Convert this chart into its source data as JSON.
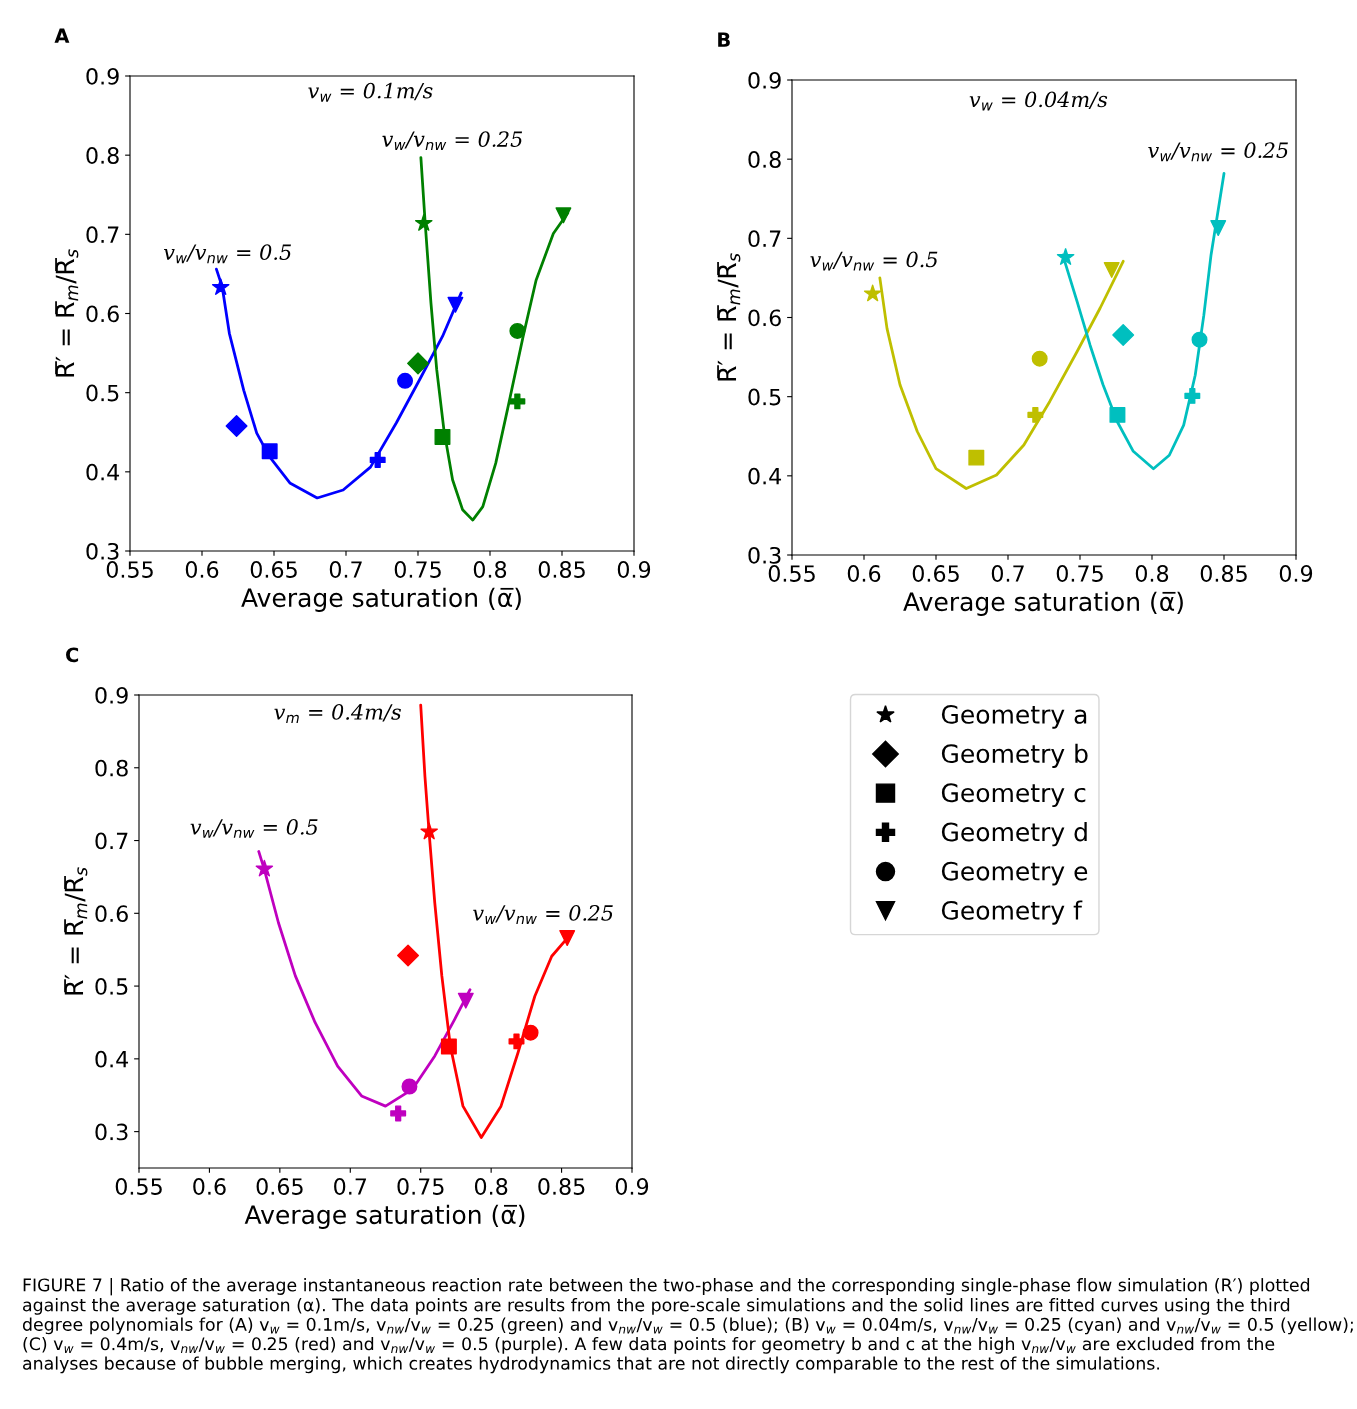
{
  "chart_data": [
    {
      "type": "scatter",
      "title": "A",
      "xlabel": "Average saturation (α̅)",
      "ylabel": "R̅′ = R̅$_{m}$/R̅$_{s}$",
      "xlim": [
        0.55,
        0.9
      ],
      "ylim": [
        0.3,
        0.9
      ],
      "xticks": [
        0.55,
        0.6,
        0.65,
        0.7,
        0.75,
        0.8,
        0.85,
        0.9
      ],
      "yticks": [
        0.3,
        0.4,
        0.5,
        0.6,
        0.7,
        0.8,
        0.9
      ],
      "grid": false,
      "annotations": [
        "v$_{w}$ = 0.1m/s",
        "v$_{w}$/v$_{nw}$ = 0.25",
        "v$_{w}$/v$_{nw}$ = 0.5"
      ],
      "series": [
        {
          "type": "line",
          "color": "#0000ff",
          "marker": "none",
          "x": [
            0.61,
            0.614,
            0.619,
            0.629,
            0.638,
            0.647,
            0.661,
            0.68,
            0.698,
            0.717,
            0.735,
            0.751,
            0.767,
            0.78
          ],
          "values": [
            0.656,
            0.634,
            0.575,
            0.503,
            0.449,
            0.419,
            0.386,
            0.367,
            0.377,
            0.406,
            0.462,
            0.516,
            0.571,
            0.626
          ]
        },
        {
          "type": "line",
          "color": "#008000",
          "marker": "none",
          "x": [
            0.752,
            0.755,
            0.759,
            0.763,
            0.768,
            0.774,
            0.781,
            0.788,
            0.795,
            0.804,
            0.813,
            0.823,
            0.832,
            0.844,
            0.854
          ],
          "values": [
            0.797,
            0.714,
            0.613,
            0.529,
            0.453,
            0.39,
            0.352,
            0.339,
            0.356,
            0.411,
            0.486,
            0.571,
            0.642,
            0.701,
            0.727
          ]
        },
        {
          "marker": "star",
          "x": [
            0.613,
            0.754
          ],
          "values": [
            0.633,
            0.714
          ],
          "colors": [
            "#0000ff",
            "#008000"
          ]
        },
        {
          "marker": "diamond",
          "x": [
            0.624,
            0.75
          ],
          "values": [
            0.458,
            0.537
          ],
          "colors": [
            "#0000ff",
            "#008000"
          ]
        },
        {
          "marker": "square",
          "x": [
            0.647,
            0.767
          ],
          "values": [
            0.426,
            0.444
          ],
          "colors": [
            "#0000ff",
            "#008000"
          ]
        },
        {
          "marker": "cross",
          "x": [
            0.722,
            0.819
          ],
          "values": [
            0.415,
            0.489
          ],
          "colors": [
            "#0000ff",
            "#008000"
          ]
        },
        {
          "marker": "circle",
          "x": [
            0.741,
            0.819
          ],
          "values": [
            0.515,
            0.578
          ],
          "colors": [
            "#0000ff",
            "#008000"
          ]
        },
        {
          "marker": "triangle",
          "x": [
            0.776,
            0.851
          ],
          "values": [
            0.611,
            0.724
          ],
          "colors": [
            "#0000ff",
            "#008000"
          ]
        }
      ]
    },
    {
      "type": "scatter",
      "title": "B",
      "xlabel": "Average saturation (α̅)",
      "ylabel": "R̅′ = R̅$_{m}$/R̅$_{s}$",
      "xlim": [
        0.55,
        0.9
      ],
      "ylim": [
        0.3,
        0.9
      ],
      "xticks": [
        0.55,
        0.6,
        0.65,
        0.7,
        0.75,
        0.8,
        0.85,
        0.9
      ],
      "yticks": [
        0.3,
        0.4,
        0.5,
        0.6,
        0.7,
        0.8,
        0.9
      ],
      "grid": false,
      "annotations": [
        "v$_{w}$ = 0.04m/s",
        "v$_{w}$/v$_{nw}$ = 0.25",
        "v$_{w}$/v$_{nw}$ = 0.5"
      ],
      "series": [
        {
          "type": "line",
          "color": "#bfbf00",
          "marker": "none",
          "x": [
            0.611,
            0.616,
            0.625,
            0.637,
            0.65,
            0.671,
            0.692,
            0.711,
            0.729,
            0.748,
            0.764,
            0.78
          ],
          "values": [
            0.65,
            0.586,
            0.515,
            0.456,
            0.409,
            0.384,
            0.401,
            0.439,
            0.494,
            0.557,
            0.612,
            0.671
          ]
        },
        {
          "type": "line",
          "color": "#00bfbf",
          "marker": "none",
          "x": [
            0.738,
            0.748,
            0.757,
            0.766,
            0.776,
            0.787,
            0.801,
            0.812,
            0.822,
            0.83,
            0.836,
            0.841,
            0.85
          ],
          "values": [
            0.679,
            0.62,
            0.565,
            0.515,
            0.468,
            0.431,
            0.409,
            0.426,
            0.464,
            0.527,
            0.603,
            0.679,
            0.782
          ]
        },
        {
          "marker": "star",
          "x": [
            0.606,
            0.74
          ],
          "values": [
            0.63,
            0.676
          ],
          "colors": [
            "#bfbf00",
            "#00bfbf"
          ]
        },
        {
          "marker": "diamond",
          "x": [
            0.78
          ],
          "values": [
            0.578
          ],
          "colors": [
            "#00bfbf"
          ]
        },
        {
          "marker": "square",
          "x": [
            0.678,
            0.776
          ],
          "values": [
            0.423,
            0.477
          ],
          "colors": [
            "#bfbf00",
            "#00bfbf"
          ]
        },
        {
          "marker": "cross",
          "x": [
            0.719,
            0.828
          ],
          "values": [
            0.477,
            0.501
          ],
          "colors": [
            "#bfbf00",
            "#00bfbf"
          ]
        },
        {
          "marker": "circle",
          "x": [
            0.722,
            0.833
          ],
          "values": [
            0.548,
            0.572
          ],
          "colors": [
            "#bfbf00",
            "#00bfbf"
          ]
        },
        {
          "marker": "triangle",
          "x": [
            0.772,
            0.846
          ],
          "values": [
            0.66,
            0.713
          ],
          "colors": [
            "#bfbf00",
            "#00bfbf"
          ]
        }
      ]
    },
    {
      "type": "scatter",
      "title": "C",
      "xlabel": "Average saturation (α̅)",
      "ylabel": "R̅′ = R̅$_{m}$/R̅$_{s}$",
      "xlim": [
        0.55,
        0.9
      ],
      "ylim": [
        0.25,
        0.9
      ],
      "xticks": [
        0.55,
        0.6,
        0.65,
        0.7,
        0.75,
        0.8,
        0.85,
        0.9
      ],
      "yticks": [
        0.3,
        0.4,
        0.5,
        0.6,
        0.7,
        0.8,
        0.9
      ],
      "grid": false,
      "annotations": [
        "v$_{m}$ = 0.4m/s",
        "v$_{w}$/v$_{nw}$ = 0.5",
        "v$_{w}$/v$_{nw}$ = 0.25",
        "FIGURE 7 | Ratio of the average instantaneous reaction rate between the two-phase and the corresponding single-phase flow simulation (R′) plotted against the average saturation (α). The data points are results from the pore-scale simulations and the solid lines are fitted curves using the third degree polynomials for (A) v$_{w}$ = 0.1m/s, v$_{nw}$/v$_{w}$ = 0.25 (green) and v$_{nw}$/v$_{w}$ = 0.5 (blue); (B) v$_{w}$ = 0.04m/s, v$_{nw}$/v$_{w}$ = 0.25 (cyan) and v$_{nw}$/v$_{w}$ = 0.5 (yellow); (C) v$_{w}$ = 0.4m/s, v$_{nw}$/v$_{w}$ = 0.25 (red) and v$_{nw}$/v$_{w}$ = 0.5 (purple). A few data points for geometry b and c at the high v$_{nw}$/v$_{w}$ are excluded from the analyses because of bubble merging, which creates hydrodynamics that are not directly comparable to the rest of the simulations."
      ],
      "series": [
        {
          "type": "line",
          "color": "#bf00bf",
          "marker": "none",
          "x": [
            0.635,
            0.639,
            0.649,
            0.661,
            0.675,
            0.691,
            0.708,
            0.725,
            0.744,
            0.76,
            0.774,
            0.785
          ],
          "values": [
            0.685,
            0.66,
            0.587,
            0.514,
            0.45,
            0.39,
            0.349,
            0.335,
            0.358,
            0.404,
            0.454,
            0.495
          ]
        },
        {
          "type": "line",
          "color": "#ff0000",
          "marker": "none",
          "x": [
            0.75,
            0.753,
            0.756,
            0.76,
            0.765,
            0.771,
            0.78,
            0.793,
            0.807,
            0.819,
            0.831,
            0.843,
            0.855
          ],
          "values": [
            0.886,
            0.788,
            0.71,
            0.614,
            0.514,
            0.418,
            0.335,
            0.292,
            0.335,
            0.408,
            0.486,
            0.541,
            0.568
          ]
        },
        {
          "marker": "star",
          "x": [
            0.639,
            0.756
          ],
          "values": [
            0.661,
            0.712
          ],
          "colors": [
            "#bf00bf",
            "#ff0000"
          ]
        },
        {
          "marker": "diamond",
          "x": [
            0.741
          ],
          "values": [
            0.542
          ],
          "colors": [
            "#ff0000"
          ]
        },
        {
          "marker": "square",
          "x": [
            0.77
          ],
          "values": [
            0.417
          ],
          "colors": [
            "#ff0000"
          ]
        },
        {
          "marker": "cross",
          "x": [
            0.734,
            0.818
          ],
          "values": [
            0.325,
            0.424
          ],
          "colors": [
            "#bf00bf",
            "#ff0000"
          ]
        },
        {
          "marker": "circle",
          "x": [
            0.742,
            0.828
          ],
          "values": [
            0.362,
            0.436
          ],
          "colors": [
            "#bf00bf",
            "#ff0000"
          ]
        },
        {
          "marker": "triangle",
          "x": [
            0.782,
            0.854
          ],
          "values": [
            0.48,
            0.566
          ],
          "colors": [
            "#bf00bf",
            "#ff0000"
          ]
        }
      ]
    },
    {
      "type": "other",
      "legend": "top left",
      "series": [
        {
          "name": "Geometry a",
          "marker": "star",
          "color": "#000000"
        },
        {
          "name": "Geometry b",
          "marker": "diamond",
          "color": "#000000"
        },
        {
          "name": "Geometry c",
          "marker": "square",
          "color": "#000000"
        },
        {
          "name": "Geometry d",
          "marker": "cross",
          "color": "#000000"
        },
        {
          "name": "Geometry e",
          "marker": "circle",
          "color": "#000000"
        },
        {
          "name": "Geometry f",
          "marker": "triangle",
          "color": "#000000"
        }
      ]
    }
  ]
}
